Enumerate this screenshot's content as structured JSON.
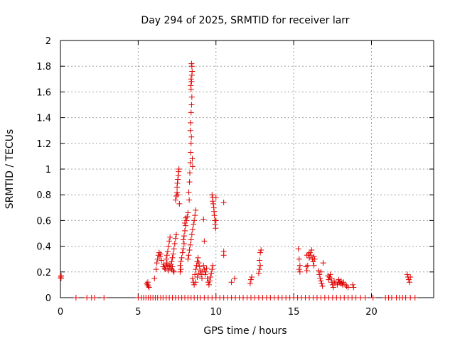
{
  "chart_data": {
    "type": "scatter",
    "title": "Day 294 of 2025, SRMTID for receiver larr",
    "xlabel": "GPS time / hours",
    "ylabel": "SRMTID / TECUs",
    "xlim": [
      0,
      24
    ],
    "ylim": [
      0,
      2
    ],
    "xticks": [
      0,
      5,
      10,
      15,
      20
    ],
    "xtick_labels": [
      "0",
      "5",
      "10",
      "15",
      "20"
    ],
    "yticks": [
      0,
      0.2,
      0.4,
      0.6,
      0.8,
      1,
      1.2,
      1.4,
      1.6,
      1.8,
      2
    ],
    "ytick_labels": [
      "0",
      "0.2",
      "0.4",
      "0.6",
      "0.8",
      "1",
      "1.2",
      "1.4",
      "1.6",
      "1.8",
      "2"
    ],
    "grid": true,
    "marker": "+",
    "colors": {
      "series": "#e00000",
      "grid": "#a0a0a0",
      "axis": "#000000"
    },
    "series": [
      {
        "name": "SRMTID",
        "points": [
          [
            0.02,
            0.16
          ],
          [
            0.05,
            0.17
          ],
          [
            0.04,
            0.15
          ],
          [
            1.0,
            0.0
          ],
          [
            1.7,
            0.0
          ],
          [
            2.0,
            0.0
          ],
          [
            2.2,
            0.0
          ],
          [
            2.8,
            0.0
          ],
          [
            5.0,
            0.0
          ],
          [
            5.2,
            0.0
          ],
          [
            5.35,
            0.0
          ],
          [
            5.5,
            0.0
          ],
          [
            5.65,
            0.0
          ],
          [
            5.8,
            0.0
          ],
          [
            5.95,
            0.0
          ],
          [
            6.1,
            0.0
          ],
          [
            6.25,
            0.0
          ],
          [
            6.45,
            0.0
          ],
          [
            6.6,
            0.0
          ],
          [
            6.8,
            0.0
          ],
          [
            7.0,
            0.0
          ],
          [
            7.2,
            0.0
          ],
          [
            7.4,
            0.0
          ],
          [
            7.6,
            0.0
          ],
          [
            7.8,
            0.0
          ],
          [
            8.0,
            0.0
          ],
          [
            8.2,
            0.0
          ],
          [
            8.4,
            0.0
          ],
          [
            8.6,
            0.0
          ],
          [
            8.8,
            0.0
          ],
          [
            9.0,
            0.0
          ],
          [
            9.25,
            0.0
          ],
          [
            9.5,
            0.0
          ],
          [
            9.75,
            0.0
          ],
          [
            10.0,
            0.0
          ],
          [
            10.25,
            0.0
          ],
          [
            10.5,
            0.0
          ],
          [
            10.75,
            0.0
          ],
          [
            11.0,
            0.0
          ],
          [
            11.25,
            0.0
          ],
          [
            11.5,
            0.0
          ],
          [
            11.75,
            0.0
          ],
          [
            12.0,
            0.0
          ],
          [
            12.25,
            0.0
          ],
          [
            12.5,
            0.0
          ],
          [
            12.75,
            0.0
          ],
          [
            13.0,
            0.0
          ],
          [
            13.25,
            0.0
          ],
          [
            13.5,
            0.0
          ],
          [
            13.75,
            0.0
          ],
          [
            14.0,
            0.0
          ],
          [
            14.25,
            0.0
          ],
          [
            14.5,
            0.0
          ],
          [
            14.75,
            0.0
          ],
          [
            15.0,
            0.0
          ],
          [
            15.25,
            0.0
          ],
          [
            15.5,
            0.0
          ],
          [
            15.75,
            0.0
          ],
          [
            16.0,
            0.0
          ],
          [
            16.25,
            0.0
          ],
          [
            16.5,
            0.0
          ],
          [
            16.75,
            0.0
          ],
          [
            17.0,
            0.0
          ],
          [
            17.25,
            0.0
          ],
          [
            17.5,
            0.0
          ],
          [
            17.75,
            0.0
          ],
          [
            18.0,
            0.0
          ],
          [
            18.25,
            0.0
          ],
          [
            18.5,
            0.0
          ],
          [
            18.75,
            0.0
          ],
          [
            19.0,
            0.0
          ],
          [
            19.3,
            0.0
          ],
          [
            19.6,
            0.0
          ],
          [
            20.1,
            0.0
          ],
          [
            20.9,
            0.0
          ],
          [
            21.1,
            0.0
          ],
          [
            21.3,
            0.0
          ],
          [
            21.6,
            0.0
          ],
          [
            21.8,
            0.0
          ],
          [
            22.0,
            0.0
          ],
          [
            22.2,
            0.0
          ],
          [
            22.5,
            0.0
          ],
          [
            22.8,
            0.0
          ],
          [
            5.55,
            0.11
          ],
          [
            5.6,
            0.1
          ],
          [
            5.65,
            0.09
          ],
          [
            5.7,
            0.08
          ],
          [
            5.62,
            0.12
          ],
          [
            6.05,
            0.15
          ],
          [
            6.15,
            0.22
          ],
          [
            6.2,
            0.27
          ],
          [
            6.25,
            0.3
          ],
          [
            6.3,
            0.33
          ],
          [
            6.35,
            0.35
          ],
          [
            6.4,
            0.32
          ],
          [
            6.45,
            0.34
          ],
          [
            6.5,
            0.29
          ],
          [
            6.6,
            0.24
          ],
          [
            6.65,
            0.26
          ],
          [
            6.7,
            0.23
          ],
          [
            6.75,
            0.22
          ],
          [
            6.8,
            0.25
          ],
          [
            6.85,
            0.27
          ],
          [
            6.9,
            0.24
          ],
          [
            6.95,
            0.21
          ],
          [
            7.0,
            0.25
          ],
          [
            7.05,
            0.23
          ],
          [
            7.1,
            0.26
          ],
          [
            7.15,
            0.22
          ],
          [
            7.2,
            0.24
          ],
          [
            7.25,
            0.21
          ],
          [
            7.3,
            0.2
          ],
          [
            6.8,
            0.3
          ],
          [
            6.85,
            0.33
          ],
          [
            6.9,
            0.36
          ],
          [
            6.95,
            0.4
          ],
          [
            7.0,
            0.44
          ],
          [
            7.05,
            0.47
          ],
          [
            7.15,
            0.28
          ],
          [
            7.2,
            0.31
          ],
          [
            7.25,
            0.34
          ],
          [
            7.3,
            0.38
          ],
          [
            7.35,
            0.42
          ],
          [
            7.4,
            0.46
          ],
          [
            7.45,
            0.49
          ],
          [
            7.4,
            0.76
          ],
          [
            7.45,
            0.79
          ],
          [
            7.5,
            0.82
          ],
          [
            7.5,
            0.86
          ],
          [
            7.52,
            0.89
          ],
          [
            7.55,
            0.92
          ],
          [
            7.58,
            0.95
          ],
          [
            7.6,
            0.98
          ],
          [
            7.62,
            1.0
          ],
          [
            7.55,
            0.8
          ],
          [
            7.65,
            0.73
          ],
          [
            7.7,
            0.25
          ],
          [
            7.75,
            0.28
          ],
          [
            7.8,
            0.31
          ],
          [
            7.85,
            0.35
          ],
          [
            7.9,
            0.38
          ],
          [
            7.95,
            0.42
          ],
          [
            7.7,
            0.2
          ],
          [
            7.75,
            0.22
          ],
          [
            7.9,
            0.45
          ],
          [
            7.95,
            0.48
          ],
          [
            8.0,
            0.52
          ],
          [
            8.05,
            0.56
          ],
          [
            8.1,
            0.6
          ],
          [
            8.15,
            0.63
          ],
          [
            8.2,
            0.66
          ],
          [
            8.0,
            0.58
          ],
          [
            8.05,
            0.62
          ],
          [
            8.2,
            0.3
          ],
          [
            8.25,
            0.33
          ],
          [
            8.3,
            0.37
          ],
          [
            8.35,
            0.41
          ],
          [
            8.4,
            0.45
          ],
          [
            8.45,
            0.49
          ],
          [
            8.5,
            0.53
          ],
          [
            8.55,
            0.57
          ],
          [
            8.6,
            0.6
          ],
          [
            8.65,
            0.64
          ],
          [
            8.7,
            0.68
          ],
          [
            8.25,
            0.82
          ],
          [
            8.28,
            0.76
          ],
          [
            8.3,
            0.9
          ],
          [
            8.32,
            0.97
          ],
          [
            8.35,
            1.05
          ],
          [
            8.38,
            1.13
          ],
          [
            8.4,
            1.2
          ],
          [
            8.42,
            1.25
          ],
          [
            8.35,
            1.3
          ],
          [
            8.37,
            1.36
          ],
          [
            8.4,
            1.44
          ],
          [
            8.43,
            1.5
          ],
          [
            8.45,
            1.56
          ],
          [
            8.4,
            1.62
          ],
          [
            8.43,
            1.68
          ],
          [
            8.45,
            1.73
          ],
          [
            8.47,
            1.76
          ],
          [
            8.4,
            1.7
          ],
          [
            8.45,
            1.8
          ],
          [
            8.43,
            1.82
          ],
          [
            8.38,
            1.65
          ],
          [
            8.5,
            1.02
          ],
          [
            8.48,
            1.08
          ],
          [
            8.5,
            0.15
          ],
          [
            8.55,
            0.12
          ],
          [
            8.6,
            0.1
          ],
          [
            8.65,
            0.18
          ],
          [
            8.7,
            0.22
          ],
          [
            8.75,
            0.25
          ],
          [
            8.8,
            0.28
          ],
          [
            8.85,
            0.31
          ],
          [
            8.9,
            0.27
          ],
          [
            8.95,
            0.24
          ],
          [
            9.0,
            0.21
          ],
          [
            9.05,
            0.18
          ],
          [
            9.1,
            0.15
          ],
          [
            9.15,
            0.2
          ],
          [
            9.2,
            0.25
          ],
          [
            9.25,
            0.22
          ],
          [
            8.7,
            0.12
          ],
          [
            8.8,
            0.16
          ],
          [
            8.9,
            0.19
          ],
          [
            9.2,
            0.61
          ],
          [
            9.25,
            0.44
          ],
          [
            9.3,
            0.18
          ],
          [
            9.35,
            0.2
          ],
          [
            9.4,
            0.23
          ],
          [
            9.45,
            0.15
          ],
          [
            9.5,
            0.12
          ],
          [
            9.55,
            0.1
          ],
          [
            9.6,
            0.13
          ],
          [
            9.65,
            0.16
          ],
          [
            9.7,
            0.19
          ],
          [
            9.75,
            0.22
          ],
          [
            9.8,
            0.25
          ],
          [
            9.75,
            0.8
          ],
          [
            9.78,
            0.78
          ],
          [
            9.8,
            0.75
          ],
          [
            9.83,
            0.73
          ],
          [
            9.86,
            0.7
          ],
          [
            9.88,
            0.67
          ],
          [
            9.9,
            0.64
          ],
          [
            9.93,
            0.6
          ],
          [
            9.95,
            0.57
          ],
          [
            9.98,
            0.54
          ],
          [
            10.0,
            0.78
          ],
          [
            10.0,
            0.6
          ],
          [
            10.5,
            0.74
          ],
          [
            10.5,
            0.36
          ],
          [
            10.5,
            0.33
          ],
          [
            11.0,
            0.12
          ],
          [
            11.2,
            0.15
          ],
          [
            12.2,
            0.11
          ],
          [
            12.25,
            0.14
          ],
          [
            12.3,
            0.16
          ],
          [
            12.75,
            0.19
          ],
          [
            12.8,
            0.22
          ],
          [
            12.85,
            0.25
          ],
          [
            12.8,
            0.29
          ],
          [
            12.85,
            0.35
          ],
          [
            12.9,
            0.37
          ],
          [
            15.3,
            0.38
          ],
          [
            15.35,
            0.3
          ],
          [
            15.4,
            0.25
          ],
          [
            15.35,
            0.22
          ],
          [
            15.4,
            0.2
          ],
          [
            15.8,
            0.24
          ],
          [
            15.85,
            0.21
          ],
          [
            15.9,
            0.25
          ],
          [
            15.85,
            0.33
          ],
          [
            15.95,
            0.34
          ],
          [
            16.0,
            0.31
          ],
          [
            16.05,
            0.35
          ],
          [
            16.1,
            0.33
          ],
          [
            16.15,
            0.37
          ],
          [
            16.2,
            0.3
          ],
          [
            16.25,
            0.28
          ],
          [
            16.3,
            0.25
          ],
          [
            16.35,
            0.3
          ],
          [
            16.3,
            0.32
          ],
          [
            16.6,
            0.21
          ],
          [
            16.65,
            0.18
          ],
          [
            16.7,
            0.15
          ],
          [
            16.75,
            0.13
          ],
          [
            16.8,
            0.11
          ],
          [
            16.85,
            0.09
          ],
          [
            16.9,
            0.27
          ],
          [
            16.75,
            0.2
          ],
          [
            17.2,
            0.17
          ],
          [
            17.25,
            0.14
          ],
          [
            17.3,
            0.16
          ],
          [
            17.35,
            0.18
          ],
          [
            17.4,
            0.15
          ],
          [
            17.45,
            0.12
          ],
          [
            17.5,
            0.1
          ],
          [
            17.55,
            0.08
          ],
          [
            17.6,
            0.13
          ],
          [
            17.65,
            0.11
          ],
          [
            17.8,
            0.1
          ],
          [
            17.85,
            0.12
          ],
          [
            17.9,
            0.14
          ],
          [
            17.95,
            0.12
          ],
          [
            18.0,
            0.11
          ],
          [
            18.05,
            0.13
          ],
          [
            18.1,
            0.11
          ],
          [
            18.15,
            0.1
          ],
          [
            18.2,
            0.12
          ],
          [
            18.3,
            0.1
          ],
          [
            18.4,
            0.09
          ],
          [
            18.5,
            0.08
          ],
          [
            18.8,
            0.1
          ],
          [
            18.85,
            0.08
          ],
          [
            22.3,
            0.18
          ],
          [
            22.35,
            0.16
          ],
          [
            22.4,
            0.14
          ],
          [
            22.45,
            0.12
          ],
          [
            22.5,
            0.16
          ]
        ]
      }
    ]
  }
}
